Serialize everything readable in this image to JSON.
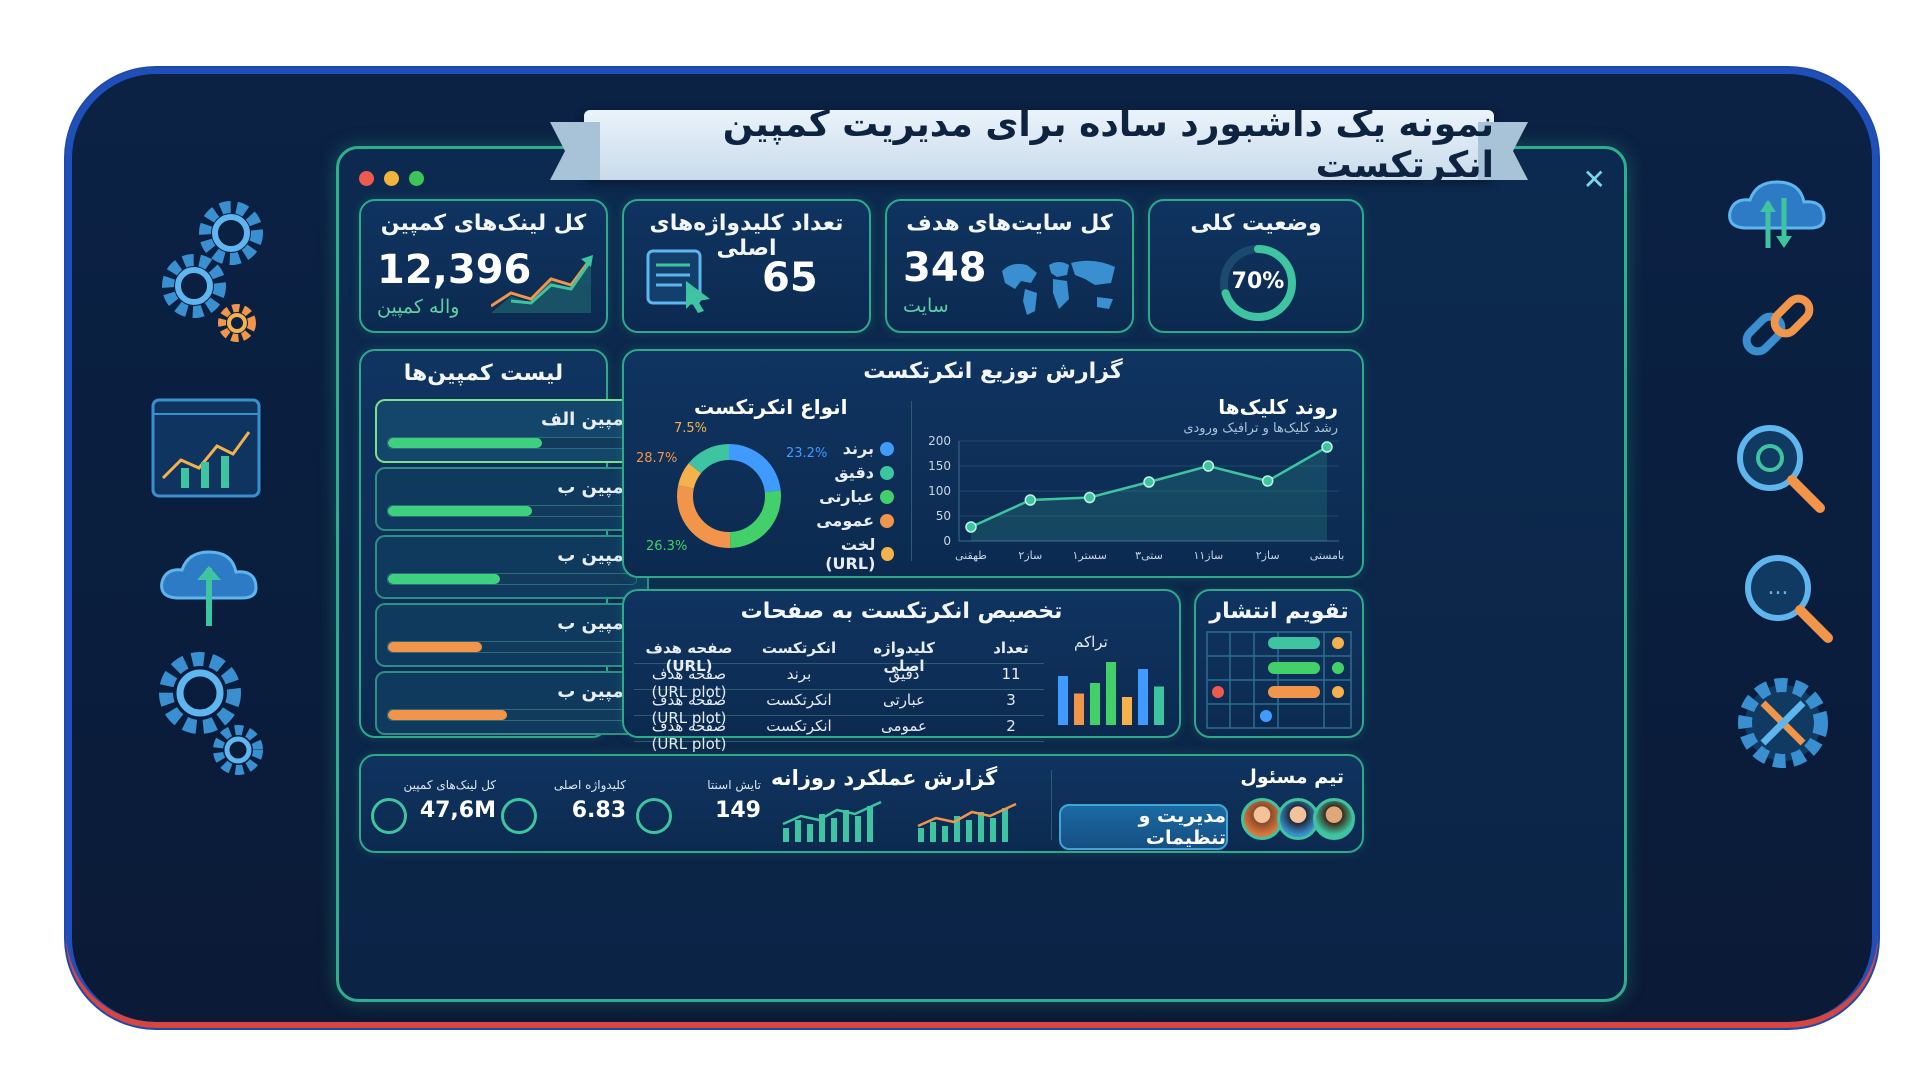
{
  "title": "نمونه یک داشبورد ساده برای مدیریت کمپین انکرتکست",
  "kpis": {
    "links": {
      "title": "کل لینک‌های کمپین",
      "value": "12,396",
      "sub": "واله کمپین"
    },
    "keywords": {
      "title": "تعداد کلیدواژه‌های اصلی",
      "value": "65"
    },
    "sites": {
      "title": "کل سایت‌های هدف",
      "value": "348",
      "sub": "سایت"
    },
    "status": {
      "title": "وضعیت کلی",
      "value": "70%",
      "progress": 0.7
    }
  },
  "campaigns": {
    "title": "لیست کمپین‌ها",
    "items": [
      {
        "label": "کمپین الف",
        "progress": 0.62,
        "color": "#3fd07f"
      },
      {
        "label": "کمپین ب",
        "progress": 0.58,
        "color": "#3fd07f"
      },
      {
        "label": "کمپین ب",
        "progress": 0.45,
        "color": "#3fd07f"
      },
      {
        "label": "کمپین ب",
        "progress": 0.38,
        "color": "#f0954a"
      },
      {
        "label": "کمپین ب",
        "progress": 0.48,
        "color": "#f0954a"
      }
    ]
  },
  "distribution": {
    "title": "گزارش توزیع انکرتکست",
    "donut_title": "انواع انکرتکست",
    "pct_labels": [
      "7.5%",
      "23.2%",
      "28.7%",
      "26.3%"
    ],
    "legend": [
      {
        "label": "برند",
        "color": "#3f9bff"
      },
      {
        "label": "دقیق",
        "color": "#3ec4a0"
      },
      {
        "label": "عبارتی",
        "color": "#43d06b"
      },
      {
        "label": "عمومی",
        "color": "#f0954a"
      },
      {
        "label": "لخت (URL)",
        "color": "#f5b14b"
      }
    ],
    "trend_title": "روند کلیک‌ها",
    "trend_sub": "رشد کلیک‌ها و ترافیک ورودی"
  },
  "chart_data": {
    "type": "line",
    "title": "روند کلیک‌ها",
    "x": [
      "طهقنی",
      "۲ساز",
      "۱سستر",
      "۳ستی",
      "۱۱ساز",
      "۲ساز",
      "بامستی"
    ],
    "values": [
      28,
      82,
      87,
      118,
      150,
      120,
      188
    ],
    "ylim": [
      0,
      200
    ],
    "yticks": [
      0,
      50,
      100,
      150,
      200
    ],
    "color": "#3ec4a0"
  },
  "allocation": {
    "title": "تخصیص انکرتکست به صفحات",
    "headers": [
      "تعداد",
      "کلیدواژه اصلی",
      "انکرتکست",
      "صفحه هدف (URL)"
    ],
    "rows": [
      [
        "11",
        "دقیق",
        "برند",
        "صفحه هدف (URL plot)"
      ],
      [
        "3",
        "عبارتی",
        "انکرتکست",
        "صفحه هدف (URL plot)"
      ],
      [
        "2",
        "عمومی",
        "انکرتکست",
        "صفحه هدف (URL plot)"
      ]
    ],
    "density_title": "تراکم"
  },
  "calendar": {
    "title": "تقویم انتشار"
  },
  "daily": {
    "title": "گزارش عملکرد روزانه",
    "stats": [
      {
        "label": "کل لینک‌های کمپین",
        "value": "47,6M"
      },
      {
        "label": "کلیدواژه اصلی",
        "value": "6.83"
      },
      {
        "label": "تایش اسنتا",
        "value": "149"
      }
    ]
  },
  "team": {
    "title": "تیم مسئول",
    "button": "مدیریت و تنظیمات"
  },
  "colors": {
    "accent": "#2fae8e",
    "bg": "#0b2245"
  }
}
